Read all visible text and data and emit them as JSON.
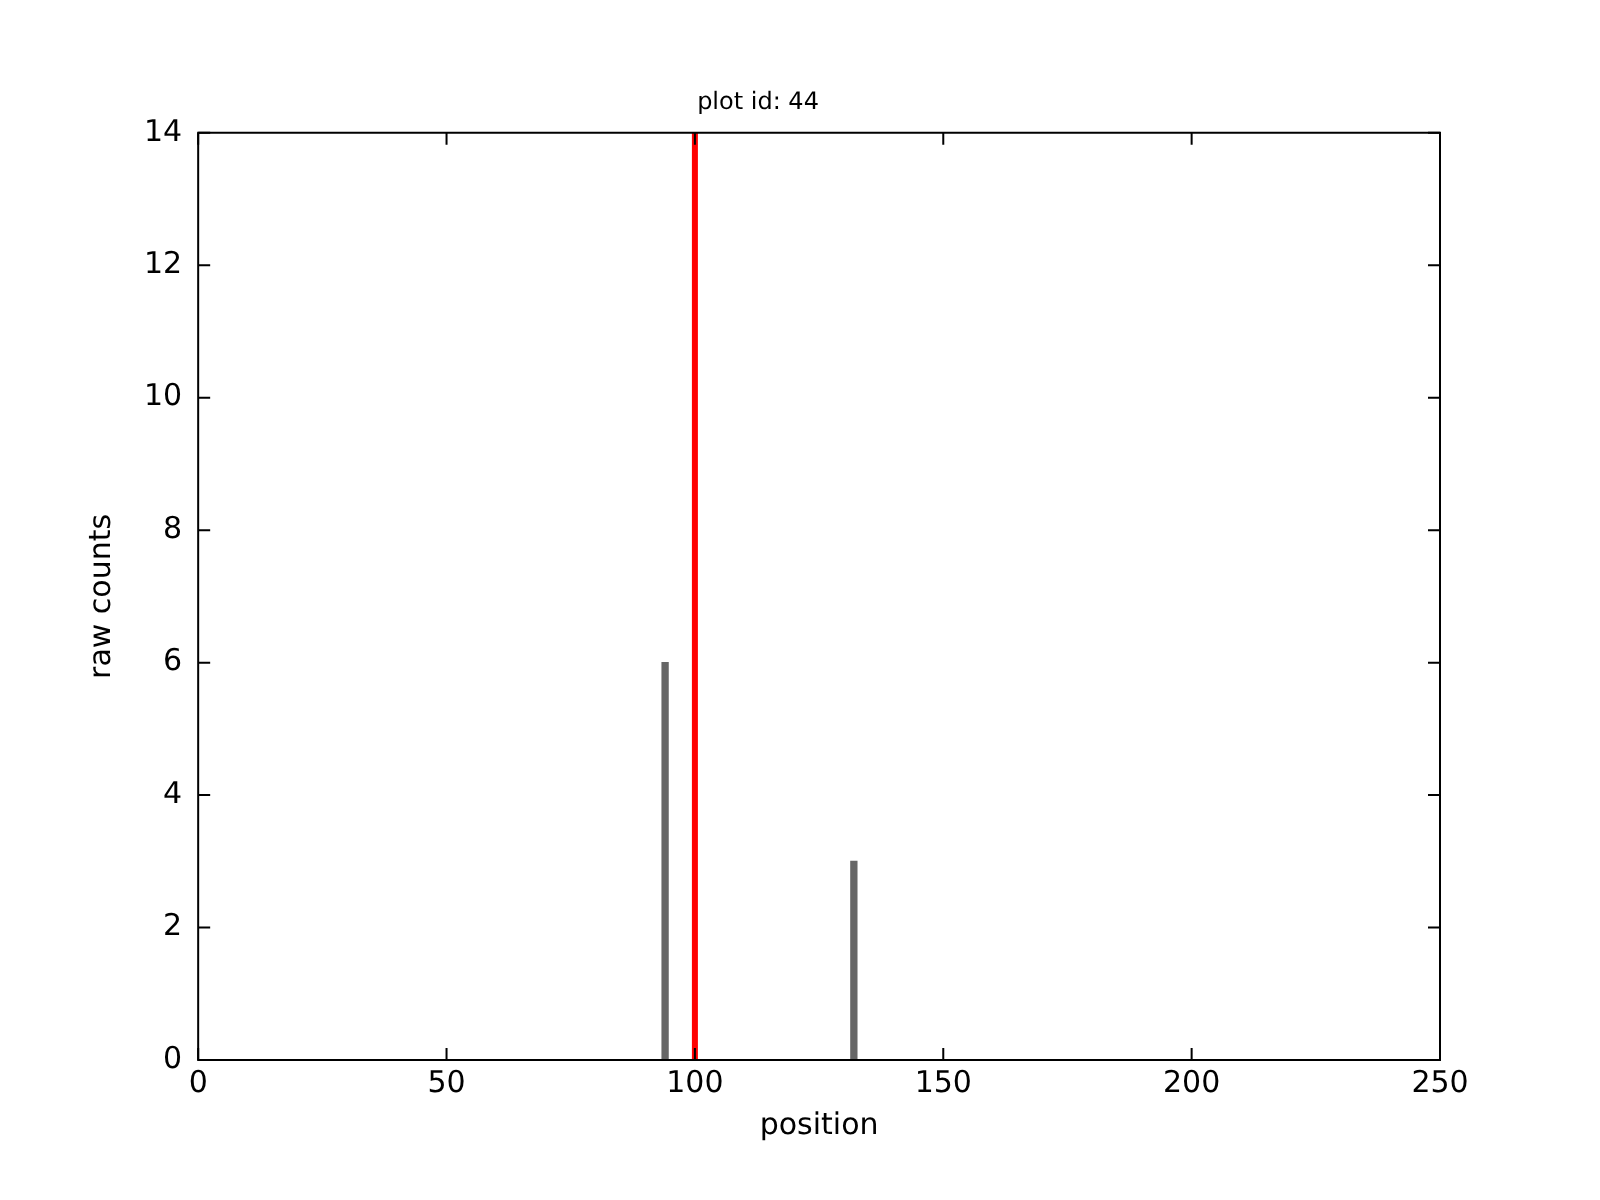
{
  "chart_data": {
    "type": "bar",
    "title": "plot id: 44",
    "xlabel": "position",
    "ylabel": "raw counts",
    "x": [
      94,
      132
    ],
    "values": [
      6,
      3
    ],
    "color": "#666666",
    "xlim": [
      0,
      250
    ],
    "xticks": [
      0,
      50,
      100,
      150,
      200,
      250
    ],
    "ylim": [
      0,
      14
    ],
    "yticks": [
      0,
      2,
      4,
      6,
      8,
      10,
      12,
      14
    ],
    "ref_lines": [
      {
        "axis": "x",
        "value": 100,
        "color": "#ff0000"
      }
    ],
    "grid": false,
    "legend": false
  }
}
